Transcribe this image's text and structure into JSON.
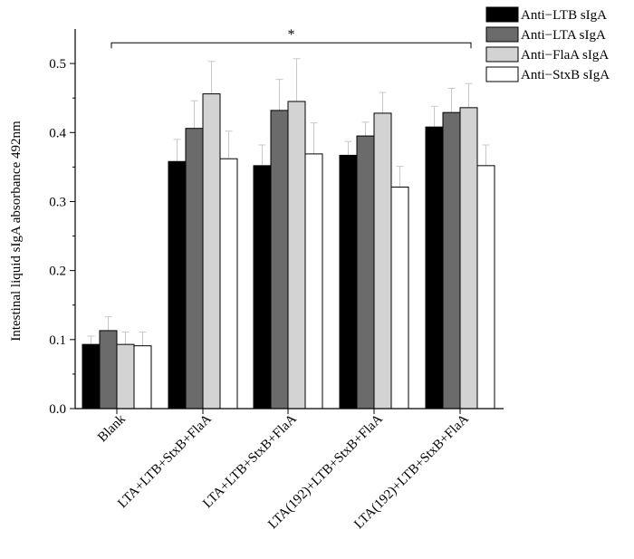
{
  "chart_data": {
    "type": "bar",
    "title": "",
    "xlabel": "",
    "ylabel": "Intestinal liquid sIgA absorbance 492nm",
    "ylim": [
      0,
      0.55
    ],
    "yticks": [
      "0.0",
      "0.1",
      "0.2",
      "0.3",
      "0.4",
      "0.5"
    ],
    "ytick_values": [
      0,
      0.1,
      0.2,
      0.3,
      0.4,
      0.5
    ],
    "grid": false,
    "legend_position": "top-right",
    "categories": [
      "Blank",
      "LTA+LTB+StxB+FlaA",
      "LTA+LTB+StxB+FlaA",
      "LTA(192)+LTB+StxB+FlaA",
      "LTA(192)+LTB+StxB+FlaA"
    ],
    "series": [
      {
        "name": "Anti−LTB sIgA",
        "color": "#000000",
        "values": [
          0.093,
          0.358,
          0.352,
          0.367,
          0.408
        ],
        "errors": [
          0.012,
          0.032,
          0.03,
          0.02,
          0.03
        ]
      },
      {
        "name": "Anti−LTA sIgA",
        "color": "#6b6b6b",
        "values": [
          0.113,
          0.406,
          0.432,
          0.395,
          0.429
        ],
        "errors": [
          0.02,
          0.04,
          0.045,
          0.02,
          0.035
        ]
      },
      {
        "name": "Anti−FlaA sIgA",
        "color": "#d3d3d3",
        "values": [
          0.093,
          0.456,
          0.445,
          0.428,
          0.436
        ],
        "errors": [
          0.018,
          0.047,
          0.062,
          0.03,
          0.035
        ]
      },
      {
        "name": "Anti−StxB sIgA",
        "color": "#ffffff",
        "values": [
          0.091,
          0.362,
          0.369,
          0.321,
          0.352
        ],
        "errors": [
          0.02,
          0.04,
          0.045,
          0.03,
          0.03
        ]
      }
    ],
    "annotation": {
      "text": "*",
      "from_category": 0,
      "to_category": 4,
      "level": 0.53
    }
  }
}
